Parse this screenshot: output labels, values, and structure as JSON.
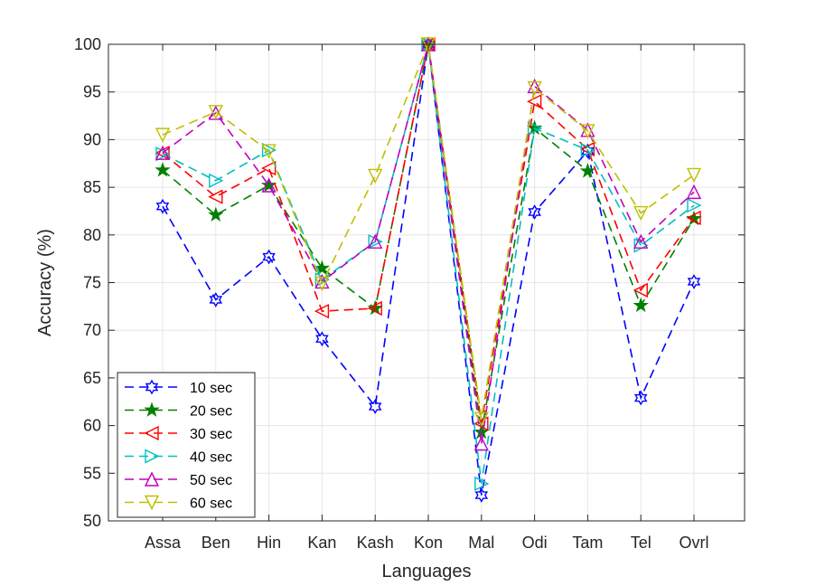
{
  "chart_data": {
    "type": "line",
    "title": "",
    "xlabel": "Languages",
    "ylabel": "Accuracy (%)",
    "ylim": [
      50,
      100
    ],
    "yticks": [
      50,
      55,
      60,
      65,
      70,
      75,
      80,
      85,
      90,
      95,
      100
    ],
    "grid": true,
    "legend_position": "bottom-left",
    "categories": [
      "Assa",
      "Ben",
      "Hin",
      "Kan",
      "Kash",
      "Kon",
      "Mal",
      "Odi",
      "Tam",
      "Tel",
      "Ovrl"
    ],
    "series": [
      {
        "name": "10 sec",
        "color": "#0000ff",
        "marker": "hexagram",
        "values": [
          83.0,
          73.2,
          77.7,
          69.1,
          62.0,
          100.0,
          52.7,
          82.4,
          88.8,
          62.9,
          75.1
        ]
      },
      {
        "name": "20 sec",
        "color": "#008000",
        "marker": "star",
        "values": [
          86.8,
          82.1,
          85.2,
          76.5,
          72.3,
          100.0,
          59.3,
          91.2,
          86.7,
          72.6,
          81.7
        ]
      },
      {
        "name": "30 sec",
        "color": "#ff0000",
        "marker": "triangle-left",
        "values": [
          88.6,
          84.0,
          87.0,
          72.0,
          72.3,
          100.0,
          60.2,
          94.0,
          89.0,
          74.2,
          81.8
        ]
      },
      {
        "name": "40 sec",
        "color": "#00bfbf",
        "marker": "triangle-right",
        "values": [
          88.5,
          85.7,
          88.9,
          75.3,
          79.3,
          100.0,
          53.9,
          91.2,
          88.9,
          78.9,
          83.1
        ]
      },
      {
        "name": "50 sec",
        "color": "#bf00bf",
        "marker": "triangle-up",
        "values": [
          88.6,
          92.8,
          85.2,
          75.1,
          79.3,
          100.0,
          58.1,
          95.6,
          91.0,
          79.3,
          84.5
        ]
      },
      {
        "name": "60 sec",
        "color": "#bfbf00",
        "marker": "triangle-down",
        "values": [
          90.5,
          92.9,
          88.8,
          74.9,
          86.2,
          100.0,
          60.7,
          95.4,
          90.9,
          82.3,
          86.3
        ]
      }
    ]
  }
}
